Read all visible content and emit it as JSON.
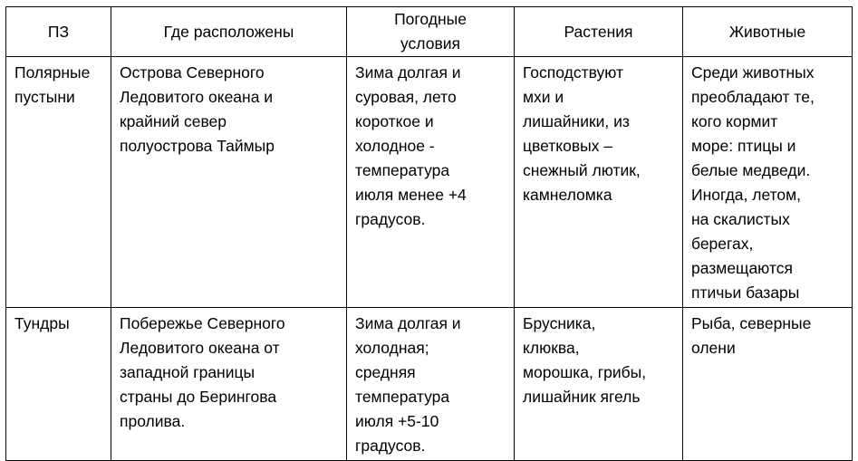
{
  "table": {
    "headers": [
      "ПЗ",
      "Где расположены",
      "Погодные\nусловия",
      "Растения",
      "Животные"
    ],
    "rows": [
      [
        "Полярные\nпустыни",
        "Острова Северного\nЛедовитого океана и\nкрайний север\nполуострова Таймыр",
        "Зима долгая и\nсуровая, лето\nкороткое и\nхолодное -\nтемпература\nиюля менее +4\nградусов.",
        "Господствуют\nмхи и\nлишайники, из\nцветковых –\nснежный лютик,\nкамнеломка",
        "Среди животных\nпреобладают те,\nкого кормит\nморе: птицы и\nбелые медведи.\nИногда, летом,\nна скалистых\nберегах,\nразмещаются\nптичьи базары"
      ],
      [
        "Тундры",
        "Побережье Северного\nЛедовитого океана от\nзападной границы\nстраны до Берингова\nпролива.",
        "Зима долгая и\nхолодная;\nсредняя\nтемпература\nиюля +5-10\nградусов.",
        "Брусника,\nклюква,\nморошка, грибы,\nлишайник ягель",
        "Рыба, северные\nолени"
      ]
    ]
  }
}
